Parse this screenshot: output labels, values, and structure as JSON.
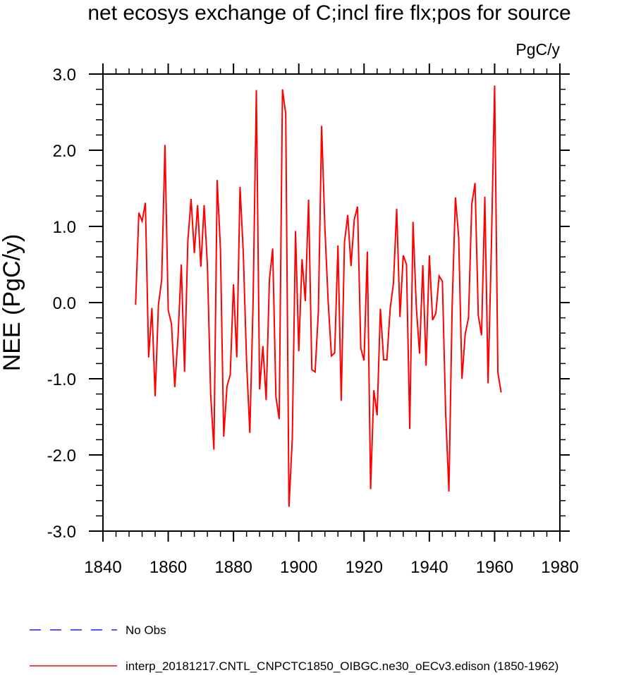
{
  "chart_data": {
    "type": "line",
    "title": "net ecosys exchange of C;incl fire flx;pos for source",
    "units": "PgC/y",
    "xlabel": "",
    "ylabel": "NEE  (PgC/y)",
    "xlim": [
      1840,
      1980
    ],
    "ylim": [
      -3.0,
      3.0
    ],
    "x_ticks": [
      1840,
      1860,
      1880,
      1900,
      1920,
      1940,
      1960,
      1980
    ],
    "x_tick_labels": [
      "1840",
      "1860",
      "1880",
      "1900",
      "1920",
      "1940",
      "1960",
      "1980"
    ],
    "y_ticks": [
      -3,
      -2,
      -1,
      0,
      1,
      2,
      3
    ],
    "y_tick_labels": [
      "-3.0",
      "-2.0",
      "-1.0",
      "0.0",
      "1.0",
      "2.0",
      "3.0"
    ],
    "grid": false,
    "legend_position": "bottom",
    "series": [
      {
        "name": "No Obs",
        "color": "#1a1aff",
        "style": "dashed",
        "x": [],
        "values": []
      },
      {
        "name": "interp_20181217.CNTL_CNPCTC1850_OIBGC.ne30_oECv3.edison (1850-1962)",
        "color": "#ff0000",
        "style": "solid",
        "x": [
          1850,
          1851,
          1852,
          1853,
          1854,
          1855,
          1856,
          1857,
          1858,
          1859,
          1860,
          1861,
          1862,
          1863,
          1864,
          1865,
          1866,
          1867,
          1868,
          1869,
          1870,
          1871,
          1872,
          1873,
          1874,
          1875,
          1876,
          1877,
          1878,
          1879,
          1880,
          1881,
          1882,
          1883,
          1884,
          1885,
          1886,
          1887,
          1888,
          1889,
          1890,
          1891,
          1892,
          1893,
          1894,
          1895,
          1896,
          1897,
          1898,
          1899,
          1900,
          1901,
          1902,
          1903,
          1904,
          1905,
          1906,
          1907,
          1908,
          1909,
          1910,
          1911,
          1912,
          1913,
          1914,
          1915,
          1916,
          1917,
          1918,
          1919,
          1920,
          1921,
          1922,
          1923,
          1924,
          1925,
          1926,
          1927,
          1928,
          1929,
          1930,
          1931,
          1932,
          1933,
          1934,
          1935,
          1936,
          1937,
          1938,
          1939,
          1940,
          1941,
          1942,
          1943,
          1944,
          1945,
          1946,
          1947,
          1948,
          1949,
          1950,
          1951,
          1952,
          1953,
          1954,
          1955,
          1956,
          1957,
          1958,
          1959,
          1960,
          1961,
          1962
        ],
        "values": [
          -0.03,
          1.18,
          1.07,
          1.31,
          -0.72,
          -0.07,
          -1.23,
          -0.03,
          0.3,
          2.07,
          -0.1,
          -0.28,
          -1.11,
          -0.45,
          0.5,
          -0.91,
          0.8,
          1.36,
          0.65,
          1.28,
          0.47,
          1.28,
          0.5,
          -1.2,
          -1.93,
          1.61,
          0.7,
          -1.76,
          -1.1,
          -0.95,
          0.24,
          -0.72,
          1.52,
          0.65,
          -0.77,
          -1.71,
          0.0,
          2.79,
          -1.14,
          -0.57,
          -1.28,
          0.3,
          0.71,
          -1.24,
          -1.53,
          2.8,
          2.48,
          -2.68,
          -1.8,
          0.94,
          -0.64,
          0.57,
          0.02,
          1.35,
          -0.88,
          -0.91,
          -0.12,
          2.32,
          0.98,
          0.02,
          -0.7,
          -0.66,
          0.75,
          -1.29,
          0.79,
          1.15,
          0.48,
          1.09,
          1.26,
          -0.6,
          -0.76,
          0.67,
          -2.45,
          -1.15,
          -1.48,
          -0.08,
          -0.75,
          -0.75,
          -0.08,
          0.25,
          1.23,
          -0.19,
          0.62,
          0.5,
          -1.66,
          1.06,
          -0.05,
          -0.67,
          0.49,
          -0.83,
          0.62,
          -0.23,
          -0.14,
          0.35,
          0.28,
          -1.45,
          -2.48,
          -0.02,
          1.38,
          0.85,
          -1.0,
          -0.41,
          -0.2,
          1.29,
          1.57,
          -0.17,
          -0.43,
          1.39,
          -1.06,
          0.71,
          2.85,
          -0.92,
          -1.18
        ]
      }
    ]
  }
}
